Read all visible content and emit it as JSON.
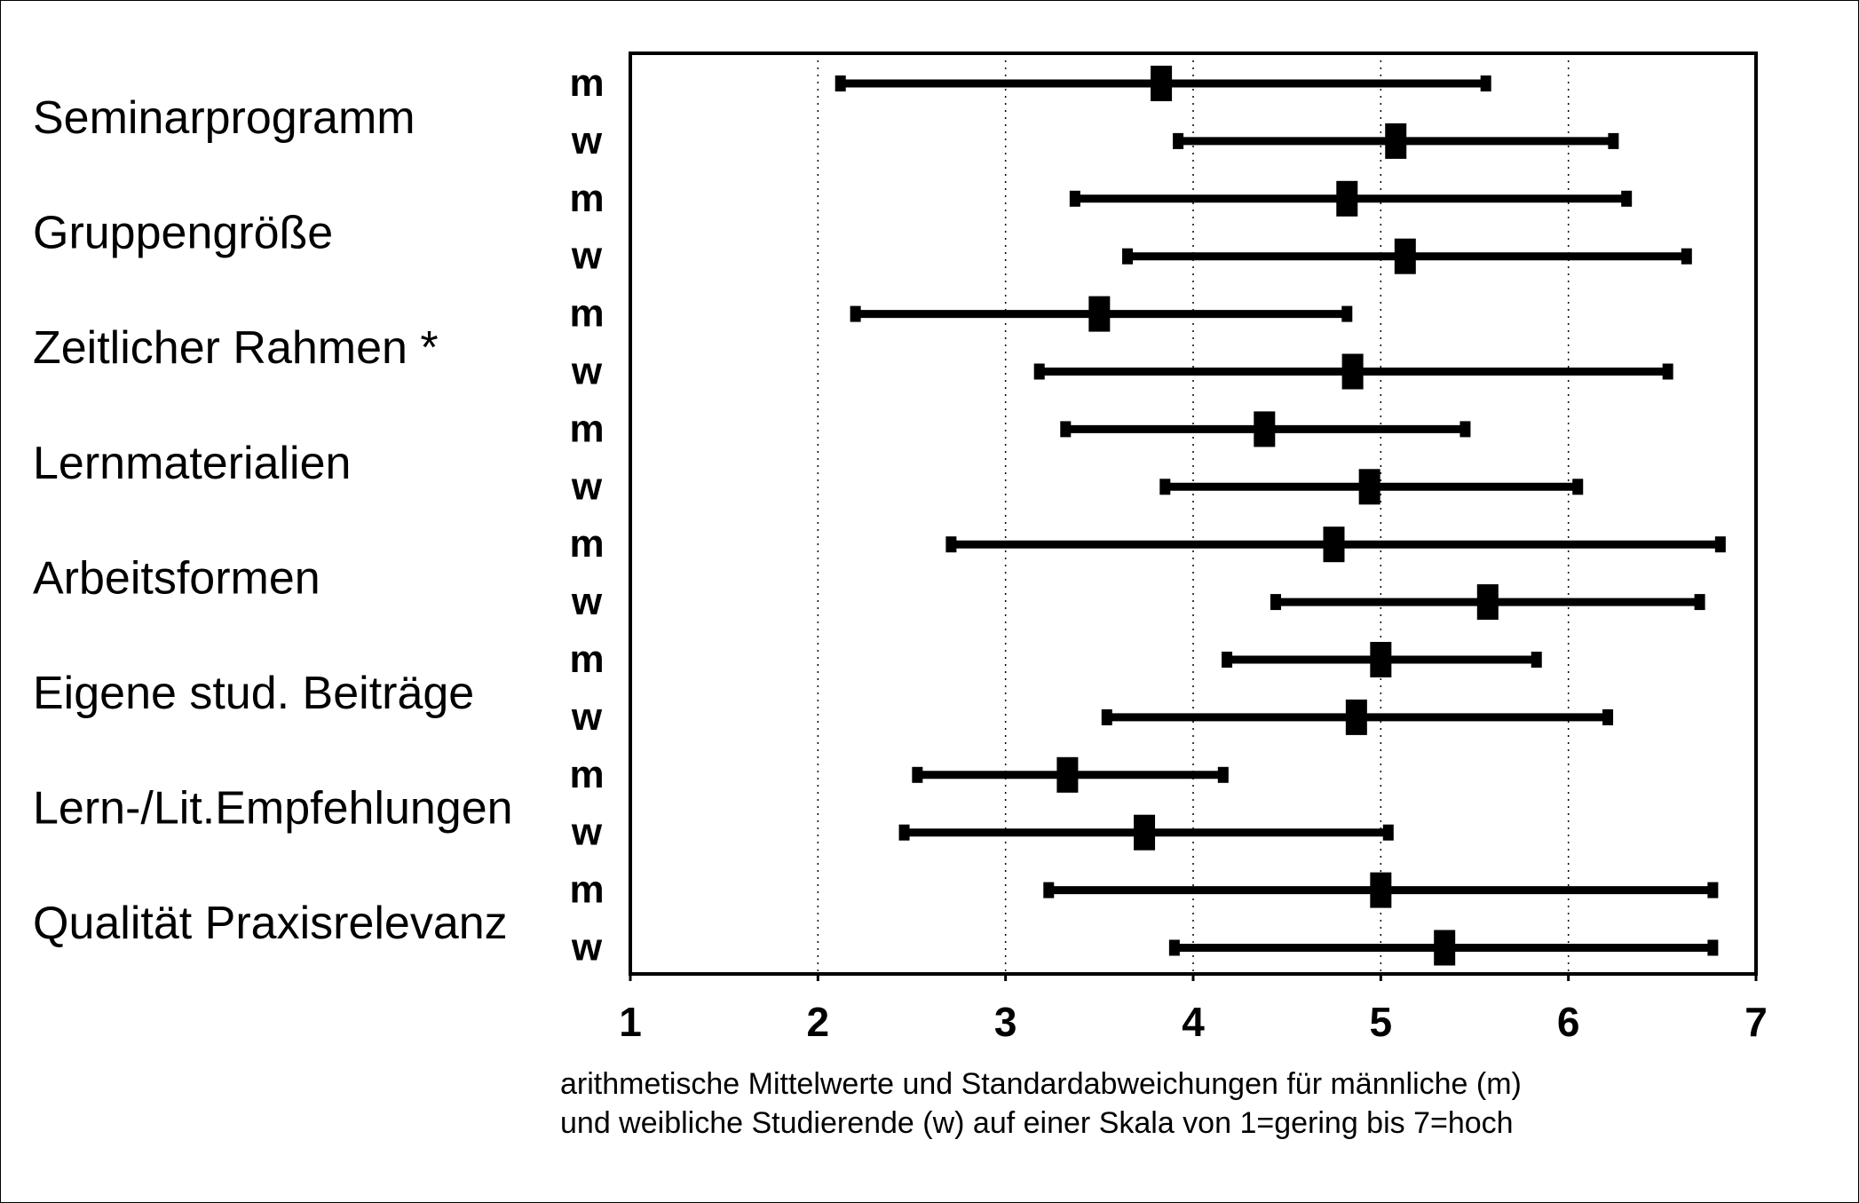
{
  "chart_data": {
    "type": "errorbar",
    "categories": [
      "Seminarprogramm",
      "Gruppengröße",
      "Zeitlicher Rahmen *",
      "Lernmaterialien",
      "Arbeitsformen",
      "Eigene stud. Beiträge",
      "Lern-/Lit.Empfehlungen",
      "Qualität Praxisrelevanz"
    ],
    "groups": [
      "m",
      "w"
    ],
    "series": [
      {
        "name": "m",
        "mean": [
          3.83,
          4.82,
          3.5,
          4.38,
          4.75,
          5.0,
          3.33,
          5.0
        ],
        "low": [
          2.12,
          3.37,
          2.2,
          3.32,
          2.71,
          4.18,
          2.53,
          3.23
        ],
        "high": [
          5.56,
          6.31,
          4.82,
          5.45,
          6.81,
          5.83,
          4.16,
          6.77
        ]
      },
      {
        "name": "w",
        "mean": [
          5.08,
          5.13,
          4.85,
          4.94,
          5.57,
          4.87,
          3.74,
          5.34
        ],
        "low": [
          3.92,
          3.65,
          3.18,
          3.85,
          4.44,
          3.54,
          2.46,
          3.9
        ],
        "high": [
          6.24,
          6.63,
          6.53,
          6.05,
          6.7,
          6.21,
          5.04,
          6.77
        ]
      }
    ],
    "xlim": [
      1,
      7
    ],
    "xticks": [
      "1",
      "2",
      "3",
      "4",
      "5",
      "6",
      "7"
    ],
    "grid": "dotted vertical lines at 2, 3, 4, 5, 6",
    "note": [
      "arithmetische Mittelwerte und Standardabweichungen für männliche (m)",
      "und weibliche Studierende (w) auf einer Skala von 1=gering bis 7=hoch"
    ]
  }
}
